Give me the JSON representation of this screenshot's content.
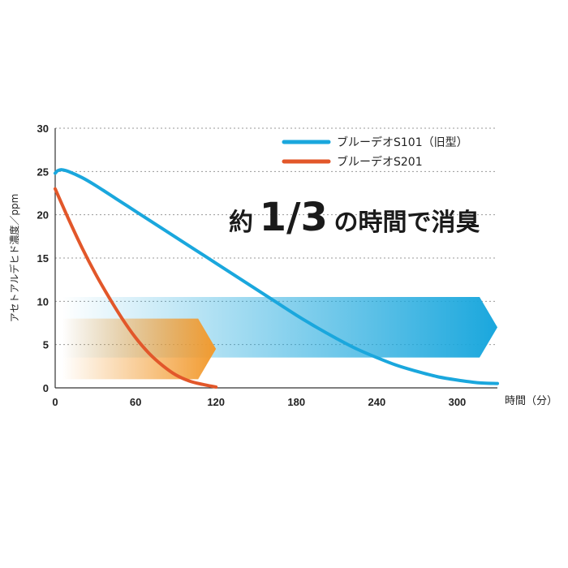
{
  "chart_data": {
    "type": "line",
    "headline": {
      "prefix": "約",
      "fraction": "1/3",
      "suffix": "の時間で消臭"
    },
    "xlabel": "時間（分）",
    "ylabel": "アセトアルデヒド濃度／ppm",
    "xlim": [
      0,
      330
    ],
    "ylim": [
      0,
      30
    ],
    "xticks": [
      0,
      60,
      120,
      180,
      240,
      300
    ],
    "yticks": [
      0,
      5,
      10,
      15,
      20,
      25,
      30
    ],
    "grid": true,
    "legend_position": "top-right",
    "series": [
      {
        "name": "ブルーデオS101（旧型）",
        "color": "#1aa7dd",
        "x": [
          0,
          2,
          5,
          10,
          20,
          30,
          45,
          60,
          75,
          90,
          105,
          120,
          135,
          150,
          165,
          180,
          195,
          210,
          225,
          240,
          255,
          270,
          285,
          300,
          315,
          330
        ],
        "y": [
          24.8,
          25.1,
          25.2,
          25.0,
          24.3,
          23.4,
          21.9,
          20.4,
          18.9,
          17.4,
          15.9,
          14.4,
          12.9,
          11.4,
          9.9,
          8.4,
          7.0,
          5.7,
          4.5,
          3.5,
          2.6,
          1.9,
          1.3,
          0.9,
          0.6,
          0.5
        ]
      },
      {
        "name": "ブルーデオS201",
        "color": "#e2572a",
        "x": [
          0,
          10,
          20,
          30,
          40,
          50,
          60,
          70,
          80,
          90,
          100,
          110,
          120
        ],
        "y": [
          23.0,
          19.5,
          16.2,
          13.2,
          10.5,
          8.0,
          5.8,
          4.0,
          2.6,
          1.5,
          0.8,
          0.4,
          0.1
        ]
      }
    ],
    "arrows": [
      {
        "color": "#f29a2e",
        "x_from": 5,
        "x_to": 120,
        "y_from": 1.0,
        "y_to": 8.0
      },
      {
        "color": "#1aa7dd",
        "x_from": 5,
        "x_to": 330,
        "y_from": 3.5,
        "y_to": 10.5
      }
    ]
  }
}
